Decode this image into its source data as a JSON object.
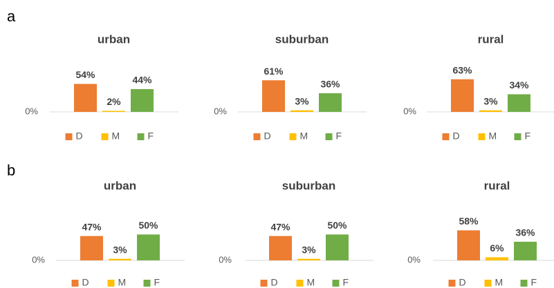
{
  "panel_labels": [
    "a",
    "b"
  ],
  "chart_data": [
    {
      "type": "bar",
      "title": "urban",
      "ylim": [
        0,
        100
      ],
      "yticks": [
        {
          "value": 0,
          "label": "0%"
        }
      ],
      "series": [
        {
          "name": "D",
          "color": "#ed7d31",
          "values": [
            54
          ],
          "value_labels": [
            "54%"
          ]
        },
        {
          "name": "M",
          "color": "#ffc000",
          "values": [
            2
          ],
          "value_labels": [
            "2%"
          ]
        },
        {
          "name": "F",
          "color": "#70ad47",
          "values": [
            44
          ],
          "value_labels": [
            "44%"
          ]
        }
      ]
    },
    {
      "type": "bar",
      "title": "suburban",
      "ylim": [
        0,
        100
      ],
      "yticks": [
        {
          "value": 0,
          "label": "0%"
        }
      ],
      "series": [
        {
          "name": "D",
          "color": "#ed7d31",
          "values": [
            61
          ],
          "value_labels": [
            "61%"
          ]
        },
        {
          "name": "M",
          "color": "#ffc000",
          "values": [
            3
          ],
          "value_labels": [
            "3%"
          ]
        },
        {
          "name": "F",
          "color": "#70ad47",
          "values": [
            36
          ],
          "value_labels": [
            "36%"
          ]
        }
      ]
    },
    {
      "type": "bar",
      "title": "rural",
      "ylim": [
        0,
        100
      ],
      "yticks": [
        {
          "value": 0,
          "label": "0%"
        }
      ],
      "series": [
        {
          "name": "D",
          "color": "#ed7d31",
          "values": [
            63
          ],
          "value_labels": [
            "63%"
          ]
        },
        {
          "name": "M",
          "color": "#ffc000",
          "values": [
            3
          ],
          "value_labels": [
            "3%"
          ]
        },
        {
          "name": "F",
          "color": "#70ad47",
          "values": [
            34
          ],
          "value_labels": [
            "34%"
          ]
        }
      ]
    },
    {
      "type": "bar",
      "title": "urban",
      "ylim": [
        0,
        100
      ],
      "yticks": [
        {
          "value": 0,
          "label": "0%"
        }
      ],
      "series": [
        {
          "name": "D",
          "color": "#ed7d31",
          "values": [
            47
          ],
          "value_labels": [
            "47%"
          ]
        },
        {
          "name": "M",
          "color": "#ffc000",
          "values": [
            3
          ],
          "value_labels": [
            "3%"
          ]
        },
        {
          "name": "F",
          "color": "#70ad47",
          "values": [
            50
          ],
          "value_labels": [
            "50%"
          ]
        }
      ]
    },
    {
      "type": "bar",
      "title": "suburban",
      "ylim": [
        0,
        100
      ],
      "yticks": [
        {
          "value": 0,
          "label": "0%"
        }
      ],
      "series": [
        {
          "name": "D",
          "color": "#ed7d31",
          "values": [
            47
          ],
          "value_labels": [
            "47%"
          ]
        },
        {
          "name": "M",
          "color": "#ffc000",
          "values": [
            3
          ],
          "value_labels": [
            "3%"
          ]
        },
        {
          "name": "F",
          "color": "#70ad47",
          "values": [
            50
          ],
          "value_labels": [
            "50%"
          ]
        }
      ]
    },
    {
      "type": "bar",
      "title": "rural",
      "ylim": [
        0,
        100
      ],
      "yticks": [
        {
          "value": 0,
          "label": "0%"
        }
      ],
      "series": [
        {
          "name": "D",
          "color": "#ed7d31",
          "values": [
            58
          ],
          "value_labels": [
            "58%"
          ]
        },
        {
          "name": "M",
          "color": "#ffc000",
          "values": [
            6
          ],
          "value_labels": [
            "6%"
          ]
        },
        {
          "name": "F",
          "color": "#70ad47",
          "values": [
            36
          ],
          "value_labels": [
            "36%"
          ]
        }
      ]
    }
  ]
}
